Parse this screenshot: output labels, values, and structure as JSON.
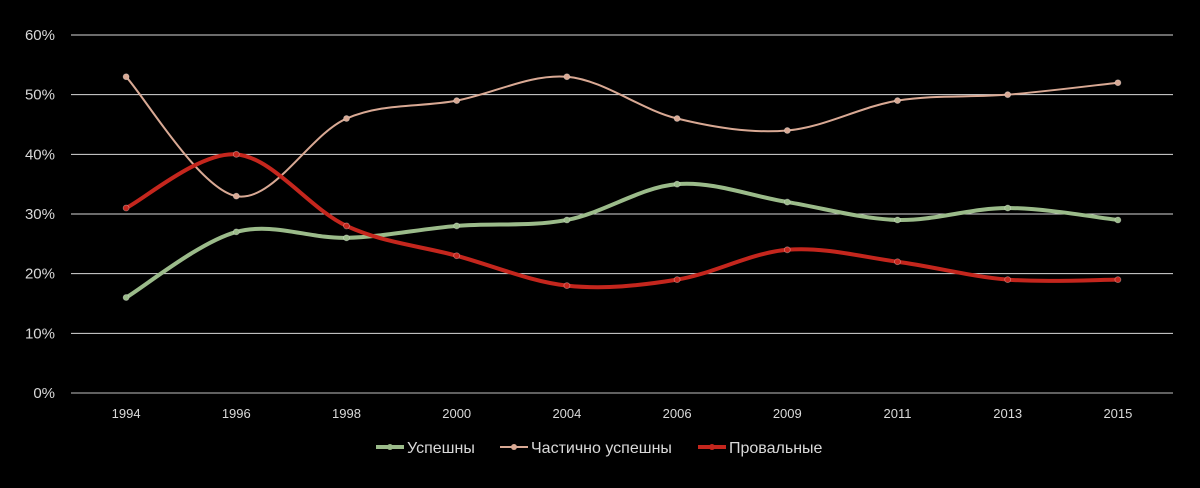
{
  "chart_data": {
    "type": "line",
    "title": "",
    "xlabel": "",
    "ylabel": "",
    "categories": [
      "1994",
      "1996",
      "1998",
      "2000",
      "2004",
      "2006",
      "2009",
      "2011",
      "2013",
      "2015"
    ],
    "yticks": [
      "0%",
      "10%",
      "20%",
      "30%",
      "40%",
      "50%",
      "60%"
    ],
    "ylim": [
      0,
      60
    ],
    "grid": true,
    "smooth": true,
    "legend_position": "bottom",
    "background": "#000000",
    "series": [
      {
        "name": "Успешны",
        "color": "#9bbb8a",
        "width": 4,
        "values": [
          16,
          27,
          26,
          28,
          29,
          35,
          32,
          29,
          31,
          29
        ]
      },
      {
        "name": "Частично успешны",
        "color": "#d9a994",
        "width": 2,
        "values": [
          53,
          33,
          46,
          49,
          53,
          46,
          44,
          49,
          50,
          52
        ]
      },
      {
        "name": "Провальные",
        "color": "#c4261d",
        "width": 4,
        "values": [
          31,
          40,
          28,
          23,
          18,
          19,
          24,
          22,
          19,
          19
        ]
      }
    ]
  }
}
